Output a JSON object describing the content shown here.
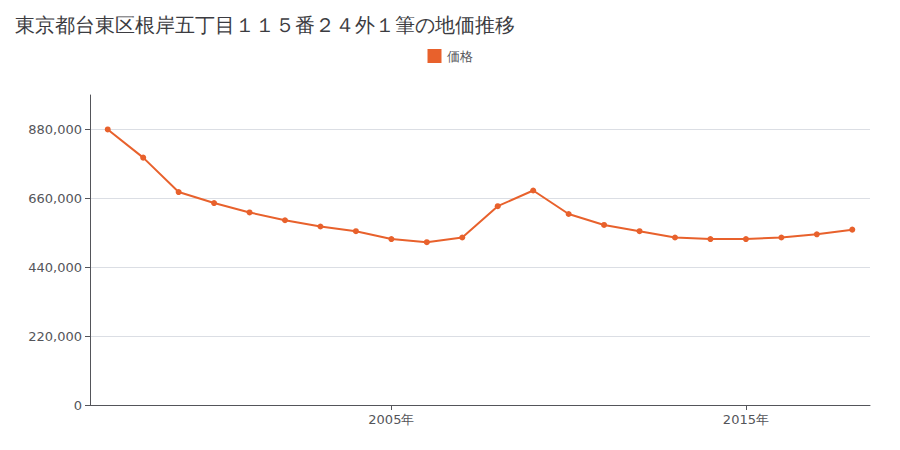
{
  "chart_data": {
    "type": "line",
    "title": "東京都台東区根岸五丁目１１５番２４外１筆の地価推移",
    "x": [
      1997,
      1998,
      1999,
      2000,
      2001,
      2002,
      2003,
      2004,
      2005,
      2006,
      2007,
      2008,
      2009,
      2010,
      2011,
      2012,
      2013,
      2014,
      2015,
      2016,
      2017,
      2018
    ],
    "series": [
      {
        "name": "価格",
        "color": "#E8612C",
        "values": [
          880000,
          790000,
          680000,
          645000,
          615000,
          590000,
          570000,
          555000,
          530000,
          520000,
          535000,
          635000,
          685000,
          610000,
          575000,
          555000,
          535000,
          530000,
          530000,
          535000,
          545000,
          560000
        ]
      }
    ],
    "xlim": [
      1996.5,
      2018.5
    ],
    "xticks": [
      {
        "value": 2005,
        "label": "2005年"
      },
      {
        "value": 2015,
        "label": "2015年"
      }
    ],
    "ylim": [
      0,
      990000
    ],
    "yticks": [
      0,
      {
        "value": 220000,
        "label": "220,000"
      },
      {
        "value": 440000,
        "label": "440,000"
      },
      {
        "value": 660000,
        "label": "660,000"
      },
      {
        "value": 880000,
        "label": "880,000"
      }
    ],
    "grid": true,
    "legend": "top",
    "marker": "circle"
  }
}
